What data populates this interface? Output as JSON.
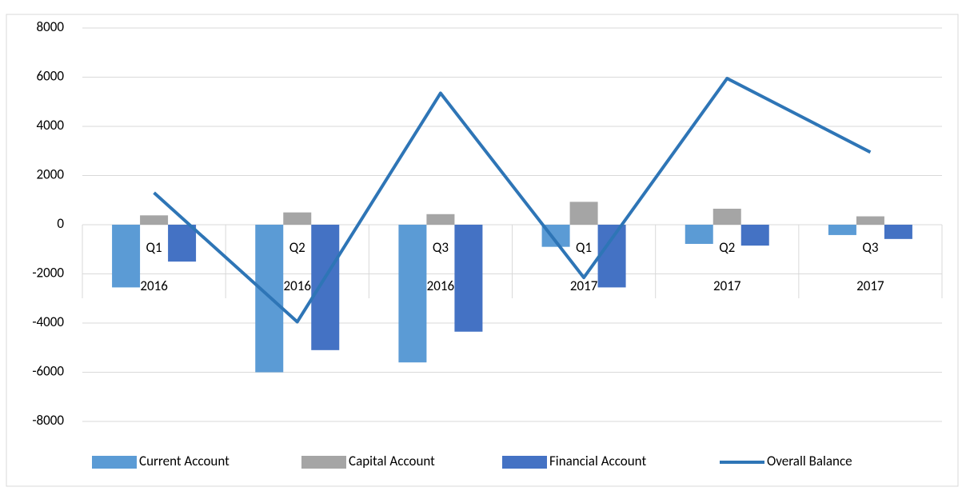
{
  "chart_data": {
    "type": "bar-line",
    "categories": [
      [
        "Q1",
        "2016"
      ],
      [
        "Q2",
        "2016"
      ],
      [
        "Q3",
        "2016"
      ],
      [
        "Q1",
        "2017"
      ],
      [
        "Q2",
        "2017"
      ],
      [
        "Q3",
        "2017"
      ]
    ],
    "series": [
      {
        "name": "Current Account",
        "type": "bar",
        "color": "#5b9bd5",
        "values": [
          -2550,
          -6000,
          -5600,
          -900,
          -780,
          -420
        ]
      },
      {
        "name": "Capital Account",
        "type": "bar",
        "color": "#a5a5a5",
        "values": [
          380,
          500,
          430,
          930,
          650,
          340
        ]
      },
      {
        "name": "Financial Account",
        "type": "bar",
        "color": "#4472c4",
        "values": [
          -1500,
          -5100,
          -4350,
          -2550,
          -850,
          -580
        ]
      },
      {
        "name": "Overall Balance",
        "type": "line",
        "color": "#2e75b6",
        "values": [
          1300,
          -3950,
          5350,
          -2150,
          5950,
          2950
        ]
      }
    ],
    "ylim": [
      -8000,
      8000
    ],
    "yticks": [
      -8000,
      -6000,
      -4000,
      -2000,
      0,
      2000,
      4000,
      6000,
      8000
    ],
    "grid": true,
    "legend": "bottom"
  }
}
